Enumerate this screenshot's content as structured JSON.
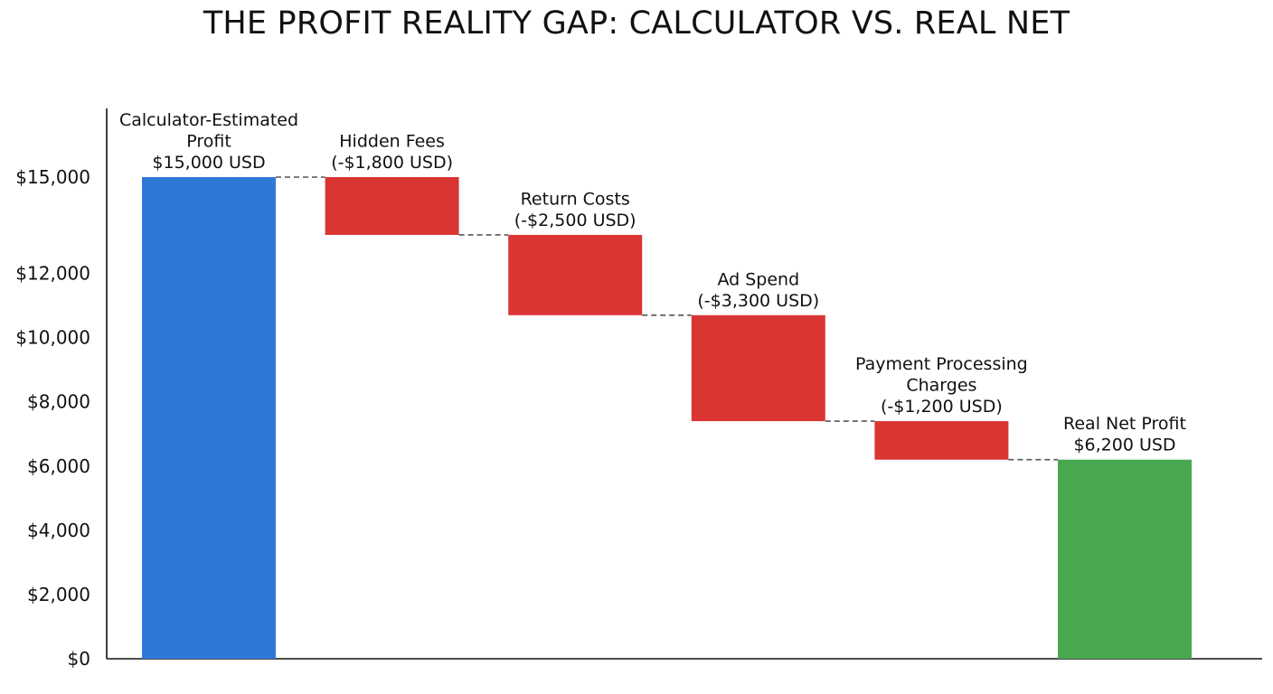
{
  "chart_data": {
    "type": "bar",
    "subtype": "waterfall",
    "title": "THE PROFIT REALITY GAP: CALCULATOR VS. REAL NET",
    "xlabel": "",
    "ylabel": "",
    "ylim": [
      0,
      16000
    ],
    "y_ticks": [
      0,
      2000,
      4000,
      6000,
      8000,
      10000,
      12000,
      15000
    ],
    "y_tick_labels": [
      "$0",
      "$2,000",
      "$4,000",
      "$6,000",
      "$8,000",
      "$10,000",
      "$12,000",
      "$15,000"
    ],
    "grid": false,
    "connectors": "dashed",
    "colors": {
      "total_start": "#2f79d6",
      "decrease": "#d93533",
      "total_end": "#47a84f"
    },
    "steps": [
      {
        "label_lines": [
          "Calculator-Estimated",
          "Profit",
          "$15,000 USD"
        ],
        "value": 15000,
        "kind": "total_start"
      },
      {
        "label_lines": [
          "Hidden Fees",
          "(-$1,800 USD)"
        ],
        "value": -1800,
        "kind": "decrease"
      },
      {
        "label_lines": [
          "Return Costs",
          "(-$2,500 USD)"
        ],
        "value": -2500,
        "kind": "decrease"
      },
      {
        "label_lines": [
          "Ad Spend",
          "(-$3,300 USD)"
        ],
        "value": -3300,
        "kind": "decrease"
      },
      {
        "label_lines": [
          "Payment Processing",
          "Charges",
          "(-$1,200 USD)"
        ],
        "value": -1200,
        "kind": "decrease"
      },
      {
        "label_lines": [
          "Real Net Profit",
          "$6,200 USD"
        ],
        "value": 6200,
        "kind": "total_end"
      }
    ]
  }
}
